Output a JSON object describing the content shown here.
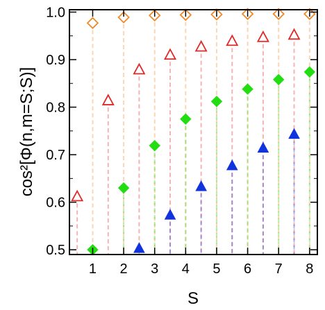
{
  "chart_data": {
    "type": "scatter",
    "xlabel": "S",
    "ylabel": "cos²[Φ(n,m=S;S)]",
    "xlim": [
      0.25,
      8.25
    ],
    "ylim": [
      0.49,
      1.005
    ],
    "xticks": [
      1,
      2,
      3,
      4,
      5,
      6,
      7,
      8
    ],
    "yticks": [
      0.5,
      0.6,
      0.7,
      0.8,
      0.9,
      1.0
    ],
    "ytick_labels": [
      "0.5",
      "0.6",
      "0.7",
      "0.8",
      "0.9",
      "1.0"
    ],
    "grid": false,
    "legend": "none",
    "drop_lines": true,
    "series": [
      {
        "marker": "diamond-open",
        "color": "#ee8a2a",
        "x": [
          1,
          2,
          3,
          4,
          5,
          6,
          7,
          8
        ],
        "y": [
          0.977,
          0.989,
          0.993,
          0.994,
          0.995,
          0.996,
          0.996,
          0.996
        ]
      },
      {
        "marker": "triangle-open",
        "color": "#e02828",
        "x": [
          0.5,
          1.5,
          2.5,
          3.5,
          4.5,
          5.5,
          6.5,
          7.5
        ],
        "y": [
          0.612,
          0.814,
          0.879,
          0.91,
          0.927,
          0.939,
          0.947,
          0.952
        ]
      },
      {
        "marker": "diamond-filled",
        "color": "#22dd11",
        "x": [
          1,
          2,
          3,
          4,
          5,
          6,
          7,
          8
        ],
        "y": [
          0.5,
          0.63,
          0.719,
          0.775,
          0.812,
          0.838,
          0.858,
          0.874
        ]
      },
      {
        "marker": "triangle-filled",
        "color": "#1133dd",
        "x": [
          2.5,
          3.5,
          4.5,
          5.5,
          6.5,
          7.5
        ],
        "y": [
          0.503,
          0.573,
          0.633,
          0.677,
          0.714,
          0.743
        ]
      }
    ]
  }
}
